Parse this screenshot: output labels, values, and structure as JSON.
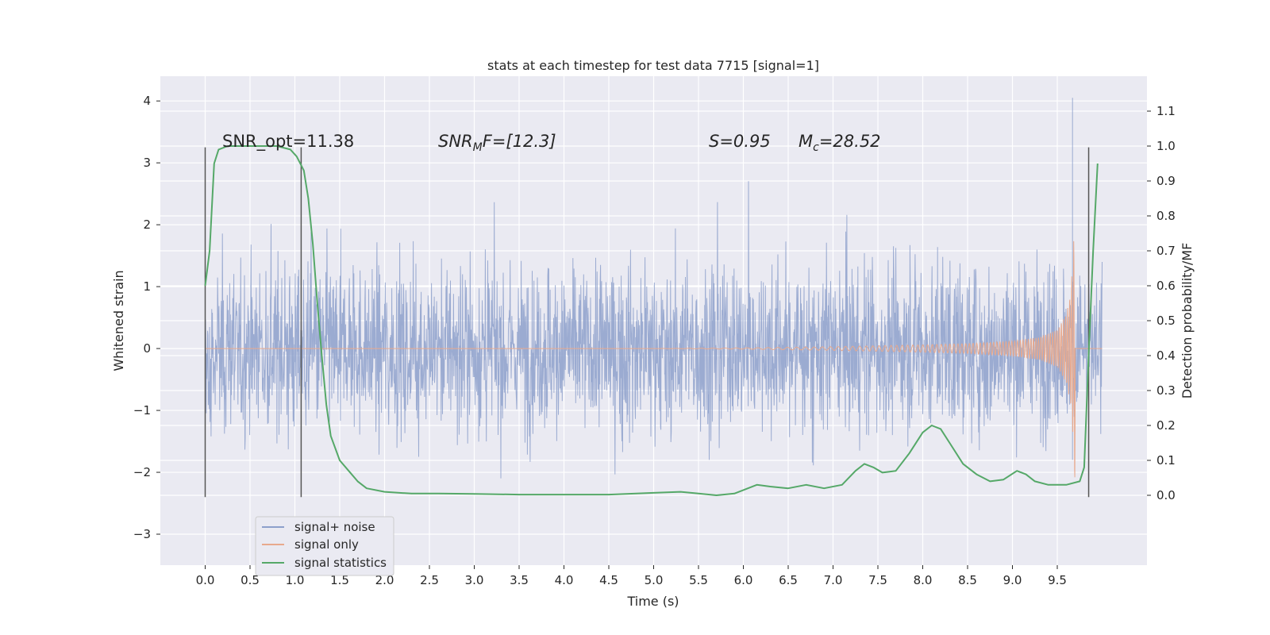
{
  "chart_data": {
    "type": "line",
    "title": "stats at each timestep for test data 7715 [signal=1]",
    "xlabel": "Time (s)",
    "ylabel_left": "Whitened strain",
    "ylabel_right": "Detection probability/MF",
    "xlim": [
      -0.5,
      10.5
    ],
    "ylim_left": [
      -3.5,
      4.4
    ],
    "ylim_right": [
      -0.2,
      1.2
    ],
    "x_ticks": [
      "0.0",
      "0.5",
      "1.0",
      "1.5",
      "2.0",
      "2.5",
      "3.0",
      "3.5",
      "4.0",
      "4.5",
      "5.0",
      "5.5",
      "6.0",
      "6.5",
      "7.0",
      "7.5",
      "8.0",
      "8.5",
      "9.0",
      "9.5"
    ],
    "y_left_ticks": [
      "4",
      "3",
      "2",
      "1",
      "0",
      "−1",
      "−2",
      "−3"
    ],
    "y_right_ticks": [
      "1.1",
      "1.0",
      "0.9",
      "0.8",
      "0.7",
      "0.6",
      "0.5",
      "0.4",
      "0.3",
      "0.2",
      "0.1",
      "0.0"
    ],
    "grid": true,
    "legend_position": "lower-left",
    "annotations": {
      "snr_opt": "SNR_opt=11.38",
      "snr_mf_prefix": "SNR",
      "snr_mf_sub": "M",
      "snr_mf_suffix": "F=[12.3]",
      "s_value": "S=0.95",
      "mc_prefix": "M",
      "mc_sub": "c",
      "mc_suffix": "=28.52"
    },
    "vertical_markers": [
      {
        "x": 0.0,
        "ymin": -2.4,
        "ymax": 3.25
      },
      {
        "x": 1.07,
        "ymin": -2.4,
        "ymax": 3.25
      },
      {
        "x": 9.85,
        "ymin": -2.4,
        "ymax": 3.25
      }
    ],
    "series": [
      {
        "name": "signal+ noise",
        "color": "#8da0cb",
        "description_range": {
          "x_start": 0.0,
          "x_end": 10.0,
          "typical_min": -1.9,
          "typical_max": 2.0
        }
      },
      {
        "name": "signal only",
        "color": "#e8a98d",
        "envelope": {
          "x": [
            0.0,
            5.0,
            6.0,
            7.0,
            8.0,
            8.5,
            9.0,
            9.3,
            9.5,
            9.6,
            9.65,
            9.68,
            9.7
          ],
          "amp": [
            0.0,
            0.0,
            0.01,
            0.03,
            0.06,
            0.08,
            0.12,
            0.18,
            0.3,
            0.55,
            0.9,
            1.6,
            2.35
          ]
        }
      },
      {
        "name": "signal statistics",
        "color": "#55a868",
        "axis": "right",
        "x": [
          0.0,
          0.05,
          0.1,
          0.15,
          0.25,
          0.4,
          0.6,
          0.8,
          0.95,
          1.02,
          1.1,
          1.15,
          1.2,
          1.25,
          1.3,
          1.35,
          1.4,
          1.5,
          1.6,
          1.7,
          1.8,
          2.0,
          2.3,
          2.6,
          3.0,
          3.5,
          4.0,
          4.5,
          5.0,
          5.3,
          5.5,
          5.7,
          5.9,
          6.0,
          6.15,
          6.3,
          6.5,
          6.7,
          6.9,
          7.1,
          7.25,
          7.35,
          7.45,
          7.55,
          7.7,
          7.85,
          8.0,
          8.1,
          8.2,
          8.3,
          8.45,
          8.6,
          8.75,
          8.9,
          9.05,
          9.15,
          9.25,
          9.4,
          9.6,
          9.75,
          9.8,
          9.85,
          9.9,
          9.95
        ],
        "y": [
          0.6,
          0.7,
          0.95,
          0.99,
          1.0,
          1.0,
          1.0,
          1.0,
          0.99,
          0.97,
          0.93,
          0.85,
          0.72,
          0.55,
          0.4,
          0.26,
          0.17,
          0.1,
          0.07,
          0.04,
          0.02,
          0.01,
          0.005,
          0.005,
          0.004,
          0.002,
          0.002,
          0.002,
          0.007,
          0.01,
          0.005,
          0.0,
          0.005,
          0.015,
          0.03,
          0.025,
          0.02,
          0.03,
          0.02,
          0.03,
          0.07,
          0.09,
          0.08,
          0.065,
          0.07,
          0.12,
          0.18,
          0.2,
          0.19,
          0.15,
          0.09,
          0.06,
          0.04,
          0.045,
          0.07,
          0.06,
          0.04,
          0.03,
          0.03,
          0.04,
          0.08,
          0.4,
          0.7,
          0.95
        ]
      }
    ]
  },
  "legend": {
    "items": [
      {
        "label": "signal+ noise",
        "color": "#8da0cb"
      },
      {
        "label": "signal only",
        "color": "#e8a98d"
      },
      {
        "label": "signal statistics",
        "color": "#55a868"
      }
    ]
  }
}
